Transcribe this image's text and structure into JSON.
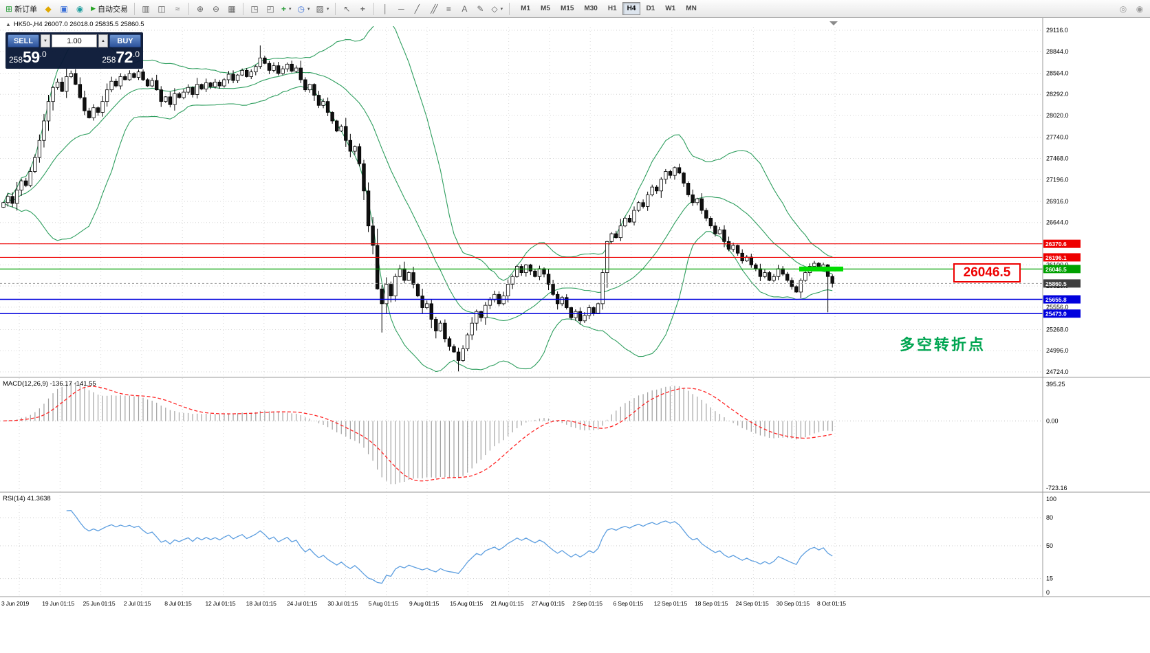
{
  "toolbar": {
    "new_order_label": "新订单",
    "autotrade_label": "自动交易",
    "timeframes": [
      "M1",
      "M5",
      "M15",
      "M30",
      "H1",
      "H4",
      "D1",
      "W1",
      "MN"
    ],
    "active_timeframe": "H4"
  },
  "icons": {
    "new_order": "⊞",
    "metaeditor": "◆",
    "terminal": "▣",
    "market": "◉",
    "autotrade_play": "▶",
    "chart_bars": "▥",
    "chart_candles": "◫",
    "chart_line": "≈",
    "zoom_in": "⊕",
    "zoom_out": "⊖",
    "grid": "▦",
    "tile_windows": "◳",
    "cascade_windows": "◰",
    "indicators_add": "+",
    "periods_clock": "◷",
    "template": "▨",
    "dropdown": "▾",
    "cursor": "↖",
    "crosshair": "+",
    "vline": "│",
    "hline": "─",
    "trendline": "╱",
    "channel": "╱╱",
    "fibonacci": "≡",
    "text_tool": "A",
    "arrows_tool": "✎",
    "shapes": "◇",
    "search": "◎",
    "grab": "◉",
    "collapse": "▲",
    "spin_down": "▼",
    "spin_up": "▲"
  },
  "one_click": {
    "sell_label": "SELL",
    "buy_label": "BUY",
    "volume": "1.00",
    "sell_price": "25859.0",
    "buy_price": "25872.0"
  },
  "chart": {
    "symbol_header": "HK50-,H4  26007.0 26018.0 25835.5 25860.5",
    "price_callout": "26046.5",
    "annotation": "多空转折点",
    "current_price": 25860.5,
    "highlight_value": 26046.5,
    "price_axis": [
      29116.0,
      28844.0,
      28564.0,
      28292.0,
      28020.0,
      27740.0,
      27468.0,
      27196.0,
      26916.0,
      26644.0,
      26372.0,
      26100.0,
      25828.0,
      25556.0,
      25268.0,
      24996.0,
      24724.0
    ],
    "hlines": [
      {
        "value": 26370.6,
        "label": "26370.6",
        "color": "#ee0000",
        "width": 1.2
      },
      {
        "value": 26196.1,
        "label": "26196.1",
        "color": "#ee0000",
        "width": 1.2
      },
      {
        "value": 26046.5,
        "label": "26046.5",
        "color": "#00a000",
        "width": 1.2
      },
      {
        "value": 25655.8,
        "label": "25655.8",
        "color": "#0000dd",
        "width": 1.5
      },
      {
        "value": 25473.0,
        "label": "25473.0",
        "color": "#0000dd",
        "width": 1.5
      }
    ],
    "dates": [
      "3 Jun 2019",
      "19 Jun 01:15",
      "25 Jun 01:15",
      "2 Jul 01:15",
      "8 Jul 01:15",
      "12 Jul 01:15",
      "18 Jul 01:15",
      "24 Jul 01:15",
      "30 Jul 01:15",
      "5 Aug 01:15",
      "9 Aug 01:15",
      "15 Aug 01:15",
      "21 Aug 01:15",
      "27 Aug 01:15",
      "2 Sep 01:15",
      "6 Sep 01:15",
      "12 Sep 01:15",
      "18 Sep 01:15",
      "24 Sep 01:15",
      "30 Sep 01:15",
      "8 Oct 01:15"
    ],
    "closes": [
      26900,
      26980,
      26890,
      27060,
      27180,
      27120,
      27300,
      27480,
      27700,
      27950,
      28200,
      28380,
      28450,
      28330,
      28520,
      28560,
      28420,
      28250,
      28080,
      27990,
      28120,
      28060,
      28200,
      28350,
      28460,
      28400,
      28520,
      28480,
      28560,
      28510,
      28580,
      28480,
      28400,
      28470,
      28350,
      28200,
      28260,
      28160,
      28300,
      28250,
      28320,
      28380,
      28290,
      28420,
      28360,
      28440,
      28390,
      28450,
      28400,
      28480,
      28550,
      28470,
      28540,
      28600,
      28520,
      28580,
      28650,
      28760,
      28690,
      28600,
      28660,
      28560,
      28620,
      28680,
      28590,
      28630,
      28480,
      28350,
      28420,
      28280,
      28150,
      28200,
      28060,
      27950,
      27820,
      27880,
      27700,
      27560,
      27620,
      27400,
      27050,
      26600,
      26350,
      25790,
      25600,
      25850,
      25700,
      25950,
      26050,
      25900,
      26000,
      25850,
      25700,
      25550,
      25600,
      25400,
      25250,
      25350,
      25150,
      25050,
      24980,
      24870,
      25020,
      25200,
      25350,
      25500,
      25420,
      25580,
      25650,
      25720,
      25600,
      25700,
      25850,
      25950,
      26080,
      26000,
      26100,
      26020,
      25950,
      26050,
      25980,
      25850,
      25720,
      25600,
      25680,
      25550,
      25420,
      25500,
      25380,
      25450,
      25550,
      25480,
      25600,
      26000,
      26400,
      26500,
      26450,
      26600,
      26700,
      26650,
      26800,
      26900,
      26850,
      27000,
      27100,
      27050,
      27200,
      27300,
      27250,
      27350,
      27280,
      27150,
      27000,
      26900,
      26950,
      26800,
      26700,
      26600,
      26500,
      26550,
      26400,
      26300,
      26350,
      26250,
      26150,
      26200,
      26100,
      26050,
      25950,
      26000,
      25900,
      25950,
      26050,
      25980,
      25900,
      25820,
      25750,
      25900,
      26000,
      26080,
      26120,
      26050,
      26100,
      25950,
      25860.5
    ],
    "wick_overrides": {
      "57": {
        "high": 28920
      },
      "84": {
        "low": 25230
      },
      "101": {
        "low": 24730
      },
      "183": {
        "low": 25490
      }
    }
  },
  "indicators": {
    "bollinger": {
      "period": 20,
      "deviation": 2
    },
    "macd": {
      "label": "MACD(12,26,9) -136.17 -141.55",
      "value": -136.17,
      "signal_value": -141.55,
      "scale_labels": [
        "395.25",
        "0.00",
        "-723.16"
      ],
      "scale_values": [
        395.25,
        0,
        -723.16
      ]
    },
    "rsi": {
      "label": "RSI(14) 41.3638",
      "value": 41.3638,
      "scale_labels": [
        "100",
        "80",
        "50",
        "15",
        "0"
      ],
      "scale_values": [
        100,
        80,
        50,
        15,
        0
      ]
    }
  },
  "colors": {
    "bull": "#ffffff",
    "bear": "#101010",
    "band": "#2e9e5e",
    "highlight": "#00dc00",
    "current": "#3f3f3f",
    "macd_hist": "#a0a0a0",
    "macd_signal": "#ff2222",
    "rsi": "#5e9fe0",
    "grid": "#d6d6d6",
    "divider": "#9a9a9a"
  }
}
